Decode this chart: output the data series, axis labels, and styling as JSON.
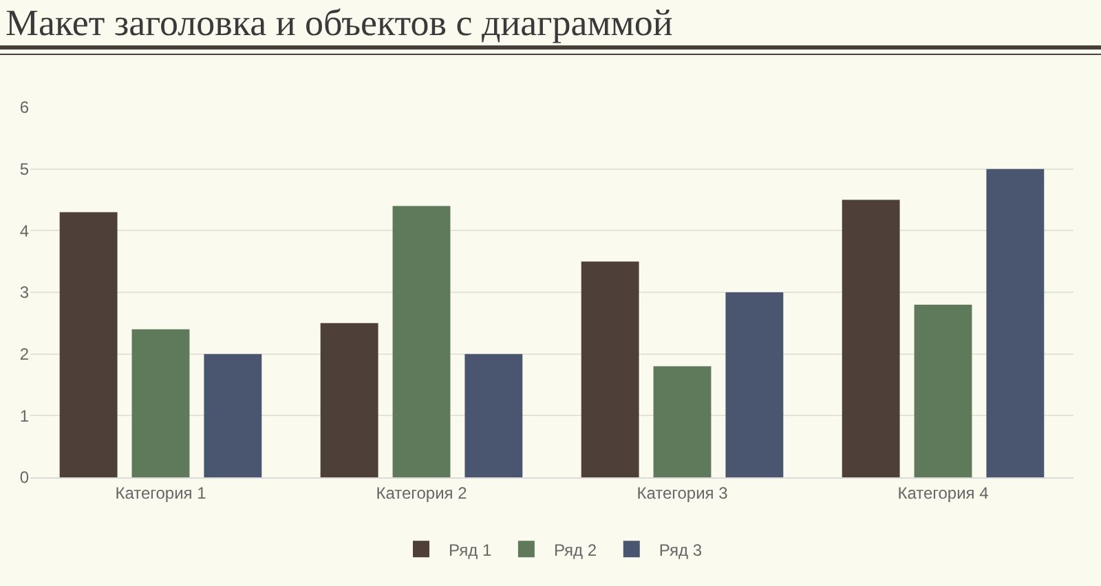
{
  "chart_data": {
    "type": "bar",
    "title": "Макет заголовка и объектов с диаграммой",
    "categories": [
      "Категория 1",
      "Категория 2",
      "Категория 3",
      "Категория 4"
    ],
    "series": [
      {
        "name": "Ряд 1",
        "color": "#4e4038",
        "values": [
          4.3,
          2.5,
          3.5,
          4.5
        ]
      },
      {
        "name": "Ряд 2",
        "color": "#5f7a5a",
        "values": [
          2.4,
          4.4,
          1.8,
          2.8
        ]
      },
      {
        "name": "Ряд 3",
        "color": "#4a5670",
        "values": [
          2,
          2,
          3,
          5
        ]
      }
    ],
    "ylim": [
      0,
      6
    ],
    "yticks": [
      0,
      1,
      2,
      3,
      4,
      5,
      6
    ],
    "grid": "y",
    "legend": "bottom"
  }
}
